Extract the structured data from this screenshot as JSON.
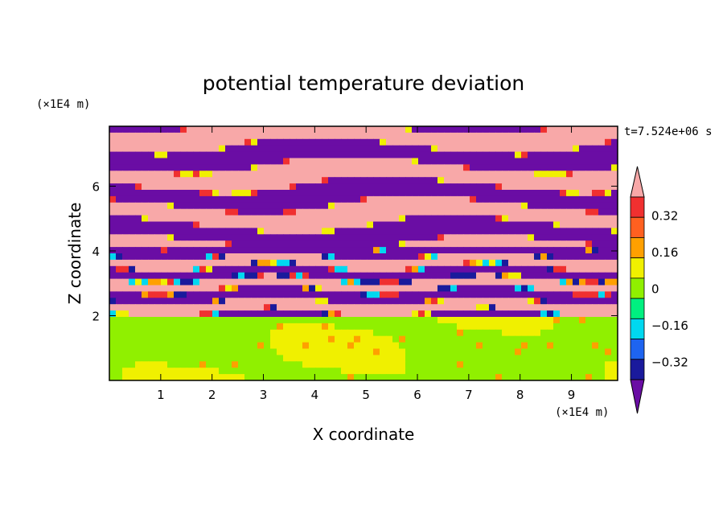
{
  "chart_data": {
    "type": "heatmap",
    "title": "potential temperature deviation",
    "xlabel": "X coordinate",
    "ylabel": "Z coordinate",
    "x_unit": "(×1E4 m)",
    "y_unit": "(×1E4 m)",
    "time_label": "t=7.524e+06 s",
    "xlim": [
      0,
      9.9
    ],
    "ylim": [
      0,
      7.85
    ],
    "x_ticks": [
      "1",
      "2",
      "3",
      "4",
      "5",
      "6",
      "7",
      "8",
      "9"
    ],
    "y_ticks": [
      "2",
      "4",
      "6"
    ],
    "colorbar": {
      "levels": [
        -0.4,
        -0.32,
        -0.24,
        -0.16,
        -0.08,
        0,
        0.08,
        0.16,
        0.24,
        0.32,
        0.4
      ],
      "labels": [
        "0.32",
        "0.16",
        "0",
        "−0.16",
        "−0.32"
      ],
      "colors": [
        "#6a0da4",
        "#1a1a9c",
        "#1e64f0",
        "#00d8f0",
        "#00f080",
        "#90f000",
        "#f0f000",
        "#ffa000",
        "#ff6020",
        "#f03030",
        "#f8a8a8"
      ],
      "extend": "both"
    },
    "field_summary": [
      {
        "z_range": [
          0,
          2
        ],
        "dominant_values": [
          0,
          0.08
        ]
      },
      {
        "z_range": [
          2,
          4.2
        ],
        "dominant_values": [
          -0.4,
          0.4,
          -0.32,
          0.24
        ]
      },
      {
        "z_range": [
          4.2,
          7.85
        ],
        "dominant_values": [
          -0.4,
          0.4
        ]
      }
    ]
  }
}
